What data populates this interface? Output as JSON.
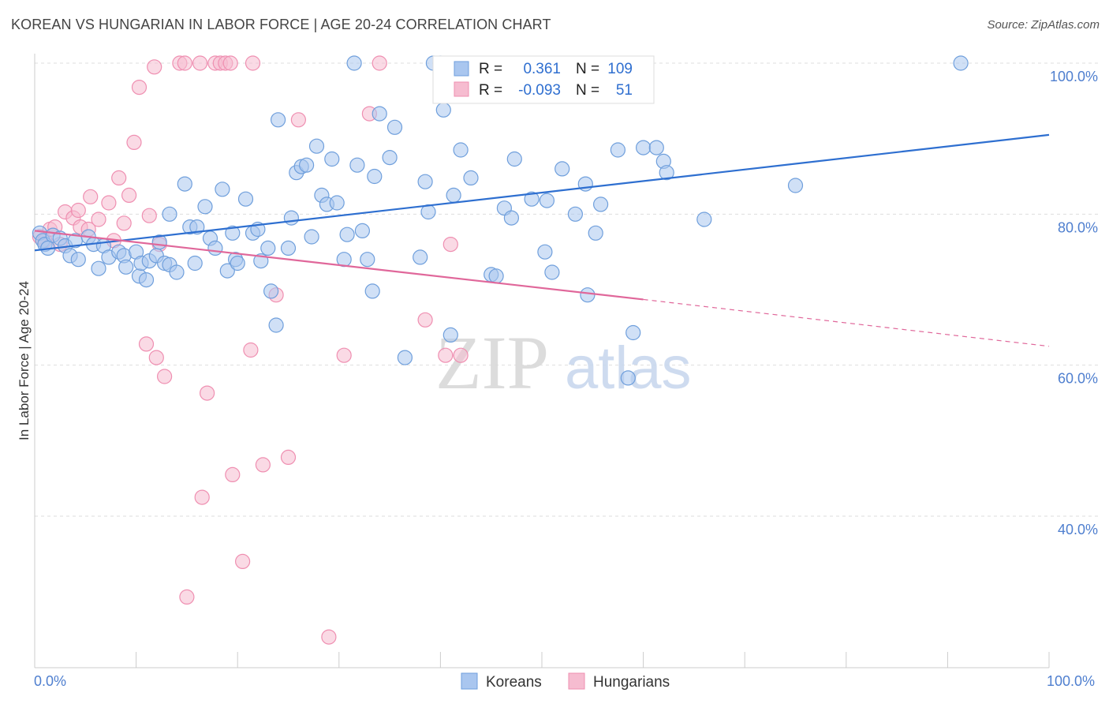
{
  "header": {
    "title": "KOREAN VS HUNGARIAN IN LABOR FORCE | AGE 20-24 CORRELATION CHART",
    "source": "Source: ZipAtlas.com"
  },
  "watermark": {
    "zip": "ZIP",
    "atlas": "atlas"
  },
  "legend_top": {
    "rows": [
      {
        "r_label": "R =",
        "r_value": "0.361",
        "n_label": "N =",
        "n_value": "109"
      },
      {
        "r_label": "R =",
        "r_value": "-0.093",
        "n_label": "N =",
        "n_value": "51"
      }
    ]
  },
  "legend_bottom": {
    "koreans": "Koreans",
    "hungarians": "Hungarians"
  },
  "colors": {
    "korean_fill": "#a9c6ef",
    "korean_stroke": "#6f9fdc",
    "korean_line": "#2e6fd0",
    "hungarian_fill": "#f6bcd0",
    "hungarian_stroke": "#ef8fb1",
    "hungarian_line": "#e0679a",
    "tick_label": "#4f7fcf",
    "grid": "#dddddd"
  },
  "chart_data": {
    "type": "scatter",
    "title": "KOREAN VS HUNGARIAN IN LABOR FORCE | AGE 20-24 CORRELATION CHART",
    "xlabel": "",
    "ylabel": "In Labor Force | Age 20-24",
    "xlim": [
      0,
      100
    ],
    "ylim": [
      20,
      100
    ],
    "x_tick_labels": [
      "0.0%",
      "100.0%"
    ],
    "y_tick_labels": [
      "40.0%",
      "60.0%",
      "80.0%",
      "100.0%"
    ],
    "y_ticks": [
      40,
      60,
      80,
      100
    ],
    "grid": true,
    "legend_position": "top-center",
    "series": [
      {
        "name": "Koreans",
        "r": 0.361,
        "n": 109,
        "trend": {
          "x0": 0,
          "y0": 75.2,
          "x1": 100,
          "y1": 90.5
        },
        "points": [
          [
            0.5,
            77.5
          ],
          [
            0.8,
            76.5
          ],
          [
            1.0,
            76.0
          ],
          [
            1.3,
            75.5
          ],
          [
            1.8,
            77.2
          ],
          [
            2.5,
            76.8
          ],
          [
            3.0,
            75.8
          ],
          [
            3.5,
            74.5
          ],
          [
            4.0,
            76.5
          ],
          [
            4.3,
            74.0
          ],
          [
            5.3,
            77.0
          ],
          [
            5.8,
            76.0
          ],
          [
            6.3,
            72.8
          ],
          [
            6.8,
            75.8
          ],
          [
            7.3,
            74.3
          ],
          [
            8.3,
            75.0
          ],
          [
            8.8,
            74.5
          ],
          [
            9.0,
            73.0
          ],
          [
            10.0,
            75.0
          ],
          [
            10.3,
            71.8
          ],
          [
            10.5,
            73.5
          ],
          [
            11.0,
            71.3
          ],
          [
            11.3,
            73.8
          ],
          [
            12.0,
            74.5
          ],
          [
            12.3,
            76.3
          ],
          [
            12.8,
            73.5
          ],
          [
            13.3,
            73.3
          ],
          [
            13.3,
            80.0
          ],
          [
            14.0,
            72.3
          ],
          [
            14.8,
            84.0
          ],
          [
            15.3,
            78.3
          ],
          [
            15.8,
            73.5
          ],
          [
            16.0,
            78.3
          ],
          [
            16.8,
            81.0
          ],
          [
            17.3,
            76.8
          ],
          [
            17.8,
            75.5
          ],
          [
            18.5,
            83.3
          ],
          [
            19.0,
            72.5
          ],
          [
            19.5,
            77.5
          ],
          [
            19.8,
            74.0
          ],
          [
            20.0,
            73.5
          ],
          [
            20.8,
            82.0
          ],
          [
            21.5,
            77.5
          ],
          [
            22.0,
            78.0
          ],
          [
            22.3,
            73.8
          ],
          [
            23.0,
            75.5
          ],
          [
            23.3,
            69.8
          ],
          [
            23.8,
            65.3
          ],
          [
            24.0,
            92.5
          ],
          [
            25.0,
            75.5
          ],
          [
            25.3,
            79.5
          ],
          [
            25.8,
            85.5
          ],
          [
            26.3,
            86.3
          ],
          [
            26.8,
            86.5
          ],
          [
            27.3,
            77.0
          ],
          [
            27.8,
            89.0
          ],
          [
            28.3,
            82.5
          ],
          [
            28.8,
            81.3
          ],
          [
            29.3,
            87.3
          ],
          [
            29.8,
            81.5
          ],
          [
            30.5,
            74.0
          ],
          [
            30.8,
            77.3
          ],
          [
            31.5,
            100
          ],
          [
            31.8,
            86.5
          ],
          [
            32.3,
            77.8
          ],
          [
            32.8,
            74.0
          ],
          [
            33.3,
            69.8
          ],
          [
            33.5,
            85.0
          ],
          [
            34.0,
            93.3
          ],
          [
            35.0,
            87.5
          ],
          [
            35.5,
            91.5
          ],
          [
            36.5,
            61.0
          ],
          [
            38.0,
            74.3
          ],
          [
            38.5,
            84.3
          ],
          [
            38.8,
            80.3
          ],
          [
            39.3,
            100
          ],
          [
            40.0,
            100
          ],
          [
            40.3,
            93.8
          ],
          [
            41.0,
            64.0
          ],
          [
            41.3,
            82.5
          ],
          [
            42.0,
            88.5
          ],
          [
            43.0,
            84.8
          ],
          [
            45.0,
            72.0
          ],
          [
            45.5,
            71.8
          ],
          [
            46.3,
            80.8
          ],
          [
            47.0,
            79.5
          ],
          [
            47.3,
            87.3
          ],
          [
            49.0,
            82.0
          ],
          [
            50.3,
            75.0
          ],
          [
            50.5,
            81.8
          ],
          [
            51.0,
            72.3
          ],
          [
            52.0,
            86.0
          ],
          [
            53.3,
            80.0
          ],
          [
            54.3,
            84.0
          ],
          [
            54.5,
            69.3
          ],
          [
            55.3,
            77.5
          ],
          [
            55.8,
            81.3
          ],
          [
            57.5,
            88.5
          ],
          [
            58.5,
            58.3
          ],
          [
            59.0,
            64.3
          ],
          [
            60.0,
            88.8
          ],
          [
            61.3,
            88.8
          ],
          [
            62.0,
            87.0
          ],
          [
            62.3,
            85.5
          ],
          [
            66.0,
            79.3
          ],
          [
            75.0,
            83.8
          ],
          [
            91.3,
            100
          ]
        ]
      },
      {
        "name": "Hungarians",
        "r": -0.093,
        "n": 51,
        "trend": {
          "x0": 0,
          "y0": 77.8,
          "x1": 60,
          "y1": 68.7
        },
        "trend_dashed": {
          "x0": 60,
          "y0": 68.7,
          "x1": 100,
          "y1": 62.5
        },
        "points": [
          [
            0.5,
            77.0
          ],
          [
            1.0,
            76.5
          ],
          [
            1.5,
            78.0
          ],
          [
            2.0,
            78.3
          ],
          [
            2.5,
            76.0
          ],
          [
            3.0,
            80.3
          ],
          [
            3.8,
            79.5
          ],
          [
            4.3,
            80.5
          ],
          [
            4.5,
            78.3
          ],
          [
            5.3,
            78.0
          ],
          [
            5.5,
            82.3
          ],
          [
            6.3,
            79.3
          ],
          [
            7.3,
            81.5
          ],
          [
            7.8,
            76.5
          ],
          [
            8.3,
            84.8
          ],
          [
            8.8,
            78.8
          ],
          [
            9.3,
            82.5
          ],
          [
            9.8,
            89.5
          ],
          [
            10.3,
            96.8
          ],
          [
            11.0,
            62.8
          ],
          [
            11.3,
            79.8
          ],
          [
            11.8,
            99.5
          ],
          [
            12.0,
            61.0
          ],
          [
            12.3,
            76.0
          ],
          [
            12.8,
            58.5
          ],
          [
            14.3,
            100
          ],
          [
            14.8,
            100
          ],
          [
            15.0,
            29.3
          ],
          [
            16.3,
            100
          ],
          [
            16.5,
            42.5
          ],
          [
            17.0,
            56.3
          ],
          [
            17.8,
            100
          ],
          [
            18.3,
            100
          ],
          [
            18.8,
            100
          ],
          [
            19.3,
            100
          ],
          [
            19.5,
            45.5
          ],
          [
            20.5,
            34.0
          ],
          [
            21.3,
            62.0
          ],
          [
            21.5,
            100
          ],
          [
            22.5,
            46.8
          ],
          [
            23.8,
            69.3
          ],
          [
            25.0,
            47.8
          ],
          [
            26.0,
            92.5
          ],
          [
            29.0,
            24.0
          ],
          [
            30.5,
            61.3
          ],
          [
            33.0,
            93.3
          ],
          [
            34.0,
            100
          ],
          [
            38.5,
            66.0
          ],
          [
            40.5,
            61.3
          ],
          [
            41.0,
            76.0
          ],
          [
            42.0,
            61.3
          ]
        ]
      }
    ]
  }
}
